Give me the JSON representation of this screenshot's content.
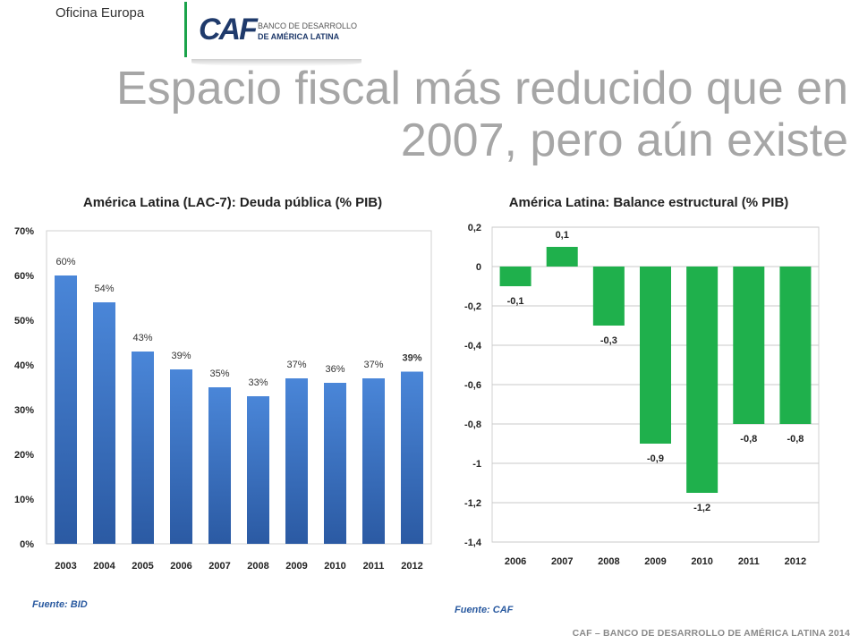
{
  "header": {
    "office": "Oficina Europa",
    "logo_text": "CAF",
    "logo_line1": "BANCO DE DESARROLLO",
    "logo_line2": "DE AMÉRICA LATINA",
    "title_line1": "Espacio fiscal más reducido que en",
    "title_line2": "2007, pero aún existe"
  },
  "colors": {
    "blue_bar": "#3f78c8",
    "green_bar": "#1fb04c",
    "title": "#a6a6a6",
    "logo_green": "#1aa34a",
    "logo_navy": "#1f3a6b"
  },
  "sources": {
    "left": "Fuente: BID",
    "right": "Fuente: CAF"
  },
  "footer": "CAF – BANCO DE DESARROLLO DE AMÉRICA LATINA 2014",
  "chart_data": [
    {
      "type": "bar",
      "title": "América Latina (LAC-7): Deuda pública (% PIB)",
      "categories": [
        "2003",
        "2004",
        "2005",
        "2006",
        "2007",
        "2008",
        "2009",
        "2010",
        "2011",
        "2012"
      ],
      "values": [
        60,
        54,
        43,
        39,
        35,
        33,
        37,
        36,
        37,
        38.5
      ],
      "labels": [
        "60%",
        "54%",
        "43%",
        "39%",
        "35%",
        "33%",
        "37%",
        "36%",
        "37%",
        "39%"
      ],
      "yticks": [
        "0%",
        "10%",
        "20%",
        "30%",
        "40%",
        "50%",
        "60%",
        "70%"
      ],
      "ylim": [
        0,
        70
      ],
      "xlabel": "",
      "ylabel": "",
      "grid": false
    },
    {
      "type": "bar",
      "title": "América Latina: Balance estructural (% PIB)",
      "categories": [
        "2006",
        "2007",
        "2008",
        "2009",
        "2010",
        "2011",
        "2012"
      ],
      "values": [
        -0.1,
        0.1,
        -0.3,
        -0.9,
        -1.15,
        -0.8,
        -0.8
      ],
      "labels": [
        "-0,1",
        "0,1",
        "-0,3",
        "-0,9",
        "-1,2",
        "-0,8",
        "-0,8"
      ],
      "yticks": [
        "0,2",
        "0",
        "-0,2",
        "-0,4",
        "-0,6",
        "-0,8",
        "-1",
        "-1,2",
        "-1,4"
      ],
      "ylim": [
        -1.4,
        0.2
      ],
      "xlabel": "",
      "ylabel": "",
      "grid": true
    }
  ]
}
